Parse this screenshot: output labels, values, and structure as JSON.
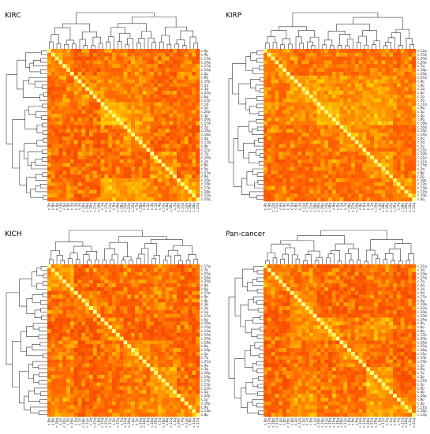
{
  "chart_data": [
    {
      "type": "heatmap",
      "title": "KIRC",
      "colormap": [
        "#d01c00",
        "#ff5a00",
        "#ffa500",
        "#ffd400",
        "#ffff99"
      ],
      "row_labels": [
        "c.6p",
        "c.9p",
        "c.13q",
        "c.14q",
        "c.17q",
        "c.15q",
        "c.2p",
        "c.8q",
        "c.10p",
        "c.5q",
        "c.3q",
        "c.22q",
        "c.6q",
        "c.12p",
        "c.1q",
        "c.1p",
        "c.20p",
        "c.3p",
        "c.20q",
        "c.21q",
        "c.7p",
        "c.19q",
        "c.18q",
        "c.4q",
        "c.13q",
        "c.4p",
        "c.11p",
        "c.7q",
        "c.16q",
        "c.2q",
        "c.8p",
        "c.5p",
        "c.11q",
        "c.9q",
        "c.16p",
        "c.19p",
        "c.17p",
        "c.18p",
        "c.12q",
        "c.10q"
      ],
      "col_labels": [
        "c.5p",
        "c.8p",
        "c.4p",
        "c.13q",
        "c.6p",
        "c.9p",
        "c.3q",
        "c.7p",
        "c.2q",
        "c.10q",
        "c.20q",
        "c.16q",
        "c.21q",
        "c.14q",
        "c.1q",
        "c.17q",
        "c.11p",
        "c.6q",
        "c.19q",
        "c.18q",
        "c.12p",
        "c.22q",
        "c.15q",
        "c.5q",
        "c.20p",
        "c.9q",
        "c.2p",
        "c.3p",
        "c.1p",
        "c.4q",
        "c.17p",
        "c.8q",
        "c.16p",
        "c.7q",
        "c.10p",
        "c.11q",
        "c.12q",
        "c.19p",
        "c.18p",
        "c.21q"
      ],
      "seed": 11
    },
    {
      "type": "heatmap",
      "title": "KIRP",
      "colormap": [
        "#d01c00",
        "#ff5a00",
        "#ffa500",
        "#ffd400",
        "#ffff99"
      ],
      "row_labels": [
        "c.12q",
        "c.13q",
        "c.20q",
        "c.20p",
        "c.7q",
        "c.16p",
        "c.19q",
        "c.22q",
        "c.9p",
        "c.4p",
        "c.1q",
        "c.6p",
        "c.7p",
        "c.3q",
        "c.11q",
        "c.9q",
        "c.5p",
        "c.3p",
        "c.8q",
        "c.18q",
        "c.16q",
        "c.19p",
        "c.14q",
        "c.6q",
        "c.5q",
        "c.1p",
        "c.17p",
        "c.10q",
        "c.11p",
        "c.21q",
        "c.15q",
        "c.2q",
        "c.8p",
        "c.2p",
        "c.18p",
        "c.12p",
        "c.13q",
        "c.17q",
        "c.10p",
        "c.4q"
      ],
      "col_labels": [
        "c.4p",
        "c.4q",
        "c.12p",
        "c.11p",
        "c.9q",
        "c.6p",
        "c.3p",
        "c.5q",
        "c.8p",
        "c.2q",
        "c.11q",
        "c.17q",
        "c.21q",
        "c.10p",
        "c.16p",
        "c.20p",
        "c.13q",
        "c.18q",
        "c.8q",
        "c.5p",
        "c.1q",
        "c.7p",
        "c.19q",
        "c.22q",
        "c.14q",
        "c.9p",
        "c.6q",
        "c.3q",
        "c.1p",
        "c.15q",
        "c.2p",
        "c.18p",
        "c.10q",
        "c.17p",
        "c.16q",
        "c.7q",
        "c.19p",
        "c.20q",
        "c.13q",
        "c.12q"
      ],
      "seed": 23
    },
    {
      "type": "heatmap",
      "title": "KICH",
      "colormap": [
        "#d01c00",
        "#ff5a00",
        "#ffa500",
        "#ffd400",
        "#ffff99"
      ],
      "row_labels": [
        "c.17q",
        "c.7p",
        "c.22q",
        "c.16q",
        "c.20q",
        "c.8q",
        "c.6p",
        "c.12p",
        "c.9p",
        "c.4p",
        "c.3p",
        "c.2q",
        "c.1q",
        "c.11q",
        "c.5p",
        "c.19q",
        "c.15q",
        "c.13q",
        "c.14q",
        "c.10q",
        "c.18q",
        "c.6q",
        "c.10p",
        "c.2p",
        "c.7q",
        "c.21q",
        "c.4q",
        "c.3q",
        "c.16p",
        "c.19p",
        "c.17p",
        "c.11p",
        "c.12q",
        "c.5q",
        "c.20p",
        "c.1p",
        "c.18p",
        "c.9q",
        "c.13q",
        "c.8p"
      ],
      "col_labels": [
        "c.8p",
        "c.6p",
        "c.16q",
        "c.2p",
        "c.10p",
        "c.5p",
        "c.19p",
        "c.3q",
        "c.7p",
        "c.18p",
        "c.11p",
        "c.1q",
        "c.21q",
        "c.9q",
        "c.15q",
        "c.22q",
        "c.17p",
        "c.3p",
        "c.12q",
        "c.7q",
        "c.13q",
        "c.20q",
        "c.4p",
        "c.1p",
        "c.14q",
        "c.10q",
        "c.6q",
        "c.18q",
        "c.19q",
        "c.2q",
        "c.16p",
        "c.8q",
        "c.11q",
        "c.5q",
        "c.20p",
        "c.4q",
        "c.12p",
        "c.9p",
        "c.13q",
        "c.17q"
      ],
      "seed": 37
    },
    {
      "type": "heatmap",
      "title": "Pan-cancer",
      "colormap": [
        "#d01c00",
        "#ff5a00",
        "#ffa500",
        "#ffd400",
        "#ffff99"
      ],
      "row_labels": [
        "c.21q",
        "c.2q",
        "c.10q",
        "c.17q",
        "c.7q",
        "c.4q",
        "c.1q",
        "c.5q",
        "c.17p",
        "c.3q",
        "c.19q",
        "c.22q",
        "c.20q",
        "c.13q",
        "c.14q",
        "c.9q",
        "c.6p",
        "c.8q",
        "c.12p",
        "c.20p",
        "c.16q",
        "c.15q",
        "c.18q",
        "c.11p",
        "c.10p",
        "c.19p",
        "c.1p",
        "c.6q",
        "c.7p",
        "c.5p",
        "c.12q",
        "c.2p",
        "c.9p",
        "c.4p",
        "c.16p",
        "c.8p",
        "c.3p",
        "c.11q",
        "c.18p",
        "c.13q"
      ],
      "col_labels": [
        "c.4p",
        "c.13q",
        "c.18p",
        "c.11q",
        "c.3p",
        "c.8p",
        "c.16p",
        "c.9p",
        "c.2p",
        "c.12q",
        "c.5p",
        "c.7p",
        "c.6q",
        "c.1p",
        "c.19p",
        "c.10p",
        "c.11p",
        "c.18q",
        "c.15q",
        "c.16q",
        "c.20p",
        "c.12p",
        "c.8q",
        "c.6p",
        "c.9q",
        "c.14q",
        "c.13q",
        "c.20q",
        "c.22q",
        "c.19q",
        "c.3q",
        "c.17p",
        "c.5q",
        "c.1q",
        "c.4q",
        "c.7q",
        "c.17q",
        "c.10q",
        "c.2q",
        "c.21q"
      ],
      "seed": 53
    }
  ]
}
